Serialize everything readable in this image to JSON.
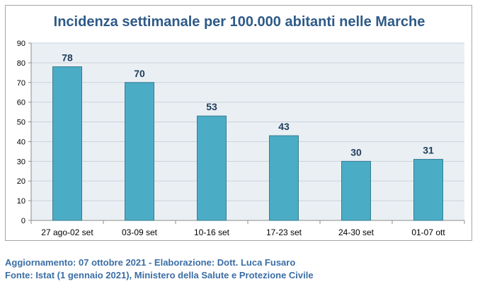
{
  "chart_data": {
    "type": "bar",
    "title": "Incidenza settimanale per 100.000 abitanti nelle Marche",
    "categories": [
      "27 ago-02 set",
      "03-09 set",
      "10-16 set",
      "17-23 set",
      "24-30 set",
      "01-07 ott"
    ],
    "values": [
      78,
      70,
      53,
      43,
      30,
      31
    ],
    "ylim": [
      0,
      90
    ],
    "yticks": [
      0,
      10,
      20,
      30,
      40,
      50,
      60,
      70,
      80,
      90
    ],
    "grid": true,
    "legend": "none",
    "colors": {
      "bar_fill": "#4bacc6",
      "bar_stroke": "#357d91",
      "plot_background": "#eaeff3",
      "gridline": "#c9d3dc",
      "data_label": "#1f3d5c",
      "title": "#2e5a87"
    }
  },
  "footer": {
    "line1": "Aggiornamento: 07 ottobre 2021 - Elaborazione: Dott. Luca Fusaro",
    "line2": "Fonte: Istat (1 gennaio 2021), Ministero della Salute e Protezione Civile"
  }
}
